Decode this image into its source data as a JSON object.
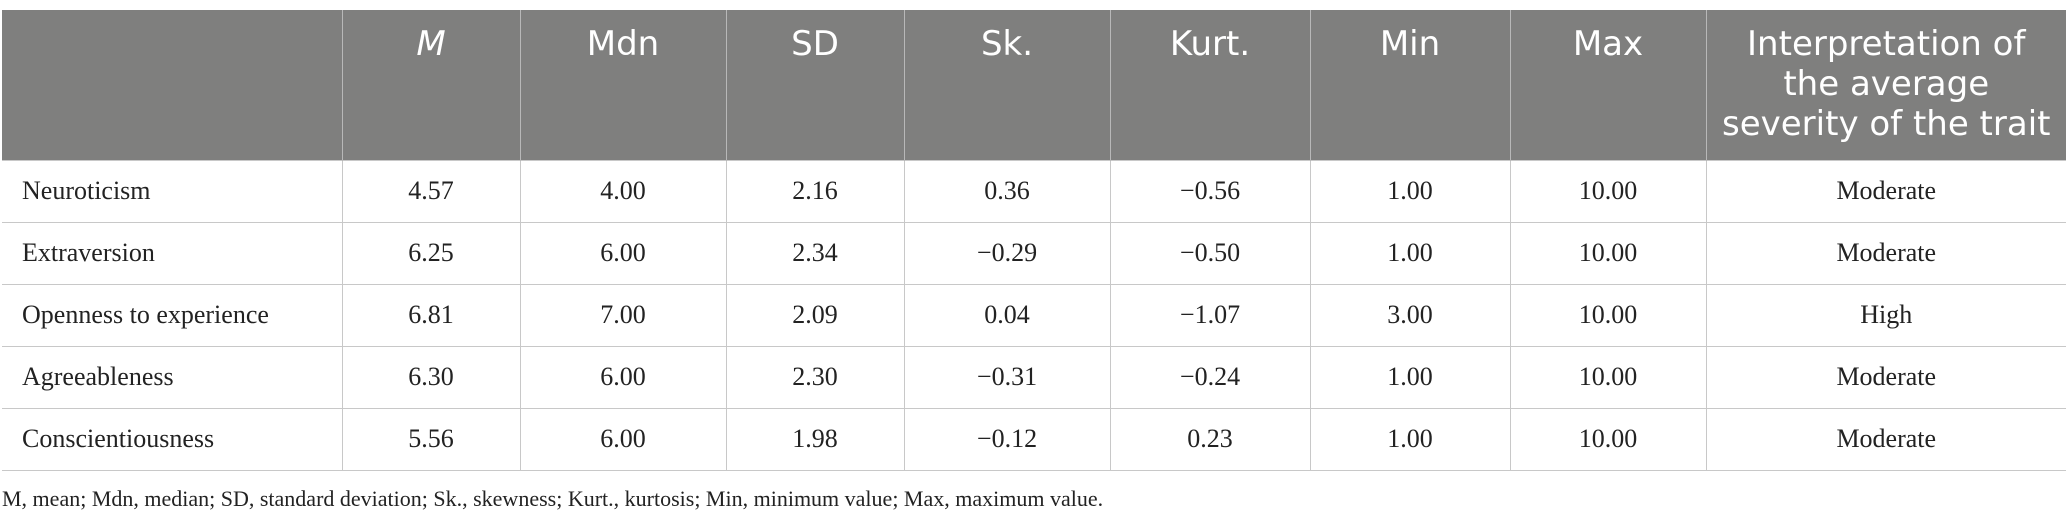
{
  "table": {
    "headers": [
      "",
      "M",
      "Mdn",
      "SD",
      "Sk.",
      "Kurt.",
      "Min",
      "Max",
      "Interpretation of the average severity of the trait"
    ],
    "rows": [
      [
        "Neuroticism",
        "4.57",
        "4.00",
        "2.16",
        "0.36",
        "−0.56",
        "1.00",
        "10.00",
        "Moderate"
      ],
      [
        "Extraversion",
        "6.25",
        "6.00",
        "2.34",
        "−0.29",
        "−0.50",
        "1.00",
        "10.00",
        "Moderate"
      ],
      [
        "Openness to experience",
        "6.81",
        "7.00",
        "2.09",
        "0.04",
        "−1.07",
        "3.00",
        "10.00",
        "High"
      ],
      [
        "Agreeableness",
        "6.30",
        "6.00",
        "2.30",
        "−0.31",
        "−0.24",
        "1.00",
        "10.00",
        "Moderate"
      ],
      [
        "Conscientiousness",
        "5.56",
        "6.00",
        "1.98",
        "−0.12",
        "0.23",
        "1.00",
        "10.00",
        "Moderate"
      ]
    ]
  },
  "footnote": "M, mean; Mdn, median; SD, standard deviation; Sk., skewness; Kurt., kurtosis; Min, minimum value; Max, maximum value.",
  "colors": {
    "header_bg": "#7f7f7e",
    "header_text": "#ffffff",
    "border": "#c8c8c8"
  }
}
